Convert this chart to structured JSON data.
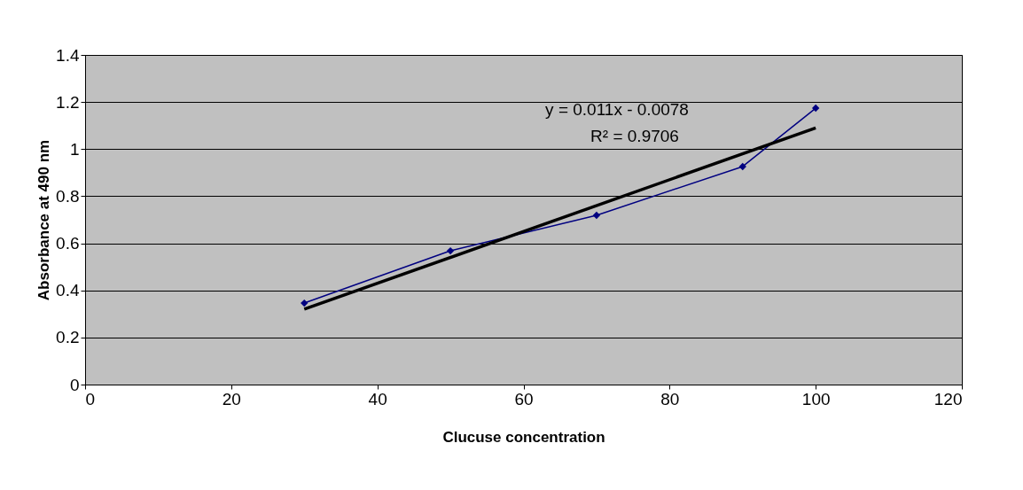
{
  "chart_data": {
    "type": "line",
    "xlabel": "Clucuse concentration",
    "ylabel": "Absorbance at 490 nm",
    "x": [
      30,
      50,
      70,
      90,
      100
    ],
    "series": [
      {
        "color": "#000080",
        "values": [
          0.346,
          0.568,
          0.719,
          0.926,
          1.174
        ],
        "marker": "diamond"
      },
      {
        "type": "line",
        "color": "#000000",
        "x": [
          30,
          100
        ],
        "values": [
          0.32,
          1.09
        ],
        "marker": "none"
      }
    ],
    "xlim": [
      0,
      120
    ],
    "xticks": [
      0,
      20,
      40,
      60,
      80,
      100,
      120
    ],
    "ylim": [
      0,
      1.4
    ],
    "yticks": [
      0,
      0.2,
      0.4,
      0.6,
      0.8,
      1,
      1.2,
      1.4
    ],
    "grid": "y",
    "line_style": "solid",
    "annotations": [
      "y = 0.011x - 0.0078",
      "R² = 0.9706"
    ]
  }
}
